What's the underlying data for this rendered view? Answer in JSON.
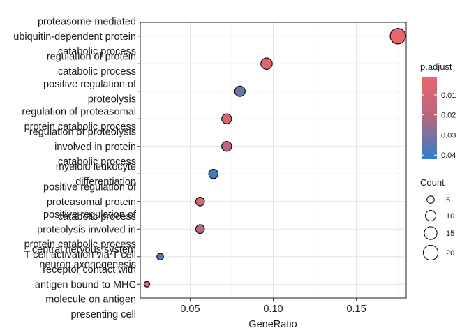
{
  "chart_data": {
    "type": "scatter",
    "xlabel": "GeneRatio",
    "x_ticks": [
      0.05,
      0.1,
      0.15
    ],
    "x_tick_labels": [
      "0.05",
      "0.10",
      "0.15"
    ],
    "xlim": [
      0.02,
      0.18
    ],
    "grid": true,
    "points": [
      {
        "term_lines": [
          "proteasome-mediated",
          "ubiquitin-dependent protein",
          "catabolic process"
        ],
        "gene_ratio": 0.175,
        "count": 22,
        "p_adjust": 0.001
      },
      {
        "term_lines": [
          "regulation of protein",
          "catabolic process"
        ],
        "gene_ratio": 0.096,
        "count": 12,
        "p_adjust": 0.005
      },
      {
        "term_lines": [
          "positive regulation of",
          "proteolysis"
        ],
        "gene_ratio": 0.08,
        "count": 10,
        "p_adjust": 0.033
      },
      {
        "term_lines": [
          "regulation of proteasomal",
          "protein catabolic process"
        ],
        "gene_ratio": 0.072,
        "count": 9,
        "p_adjust": 0.006
      },
      {
        "term_lines": [
          "regulation of proteolysis",
          "involved in protein",
          "catabolic process"
        ],
        "gene_ratio": 0.072,
        "count": 9,
        "p_adjust": 0.017
      },
      {
        "term_lines": [
          "myeloid leukocyte",
          "differentiation"
        ],
        "gene_ratio": 0.064,
        "count": 8,
        "p_adjust": 0.04
      },
      {
        "term_lines": [
          "positive regulation of",
          "proteasomal protein",
          "catabolic process"
        ],
        "gene_ratio": 0.056,
        "count": 7,
        "p_adjust": 0.007
      },
      {
        "term_lines": [
          "positive regulation of",
          "proteolysis involved in",
          "protein catabolic process"
        ],
        "gene_ratio": 0.056,
        "count": 7,
        "p_adjust": 0.017
      },
      {
        "term_lines": [
          "central nervous system",
          "neuron axonogenesis"
        ],
        "gene_ratio": 0.032,
        "count": 4,
        "p_adjust": 0.036
      },
      {
        "term_lines": [
          "T cell activation via T cell",
          "receptor contact with",
          "antigen bound to MHC",
          "molecule on antigen",
          "presenting cell"
        ],
        "gene_ratio": 0.024,
        "count": 3,
        "p_adjust": 0.012
      }
    ],
    "color_legend": {
      "title": "p.adjust",
      "ticks": [
        0.01,
        0.02,
        0.03,
        0.04
      ],
      "tick_labels": [
        "0.01",
        "0.02",
        "0.03",
        "0.04"
      ],
      "range": [
        0.001,
        0.042
      ],
      "low_color": "#e8666a",
      "mid_color": "#b3677f",
      "high_color": "#2f7fc9"
    },
    "size_legend": {
      "title": "Count",
      "values": [
        5,
        10,
        15,
        20
      ],
      "labels": [
        "5",
        "10",
        "15",
        "20"
      ]
    }
  }
}
